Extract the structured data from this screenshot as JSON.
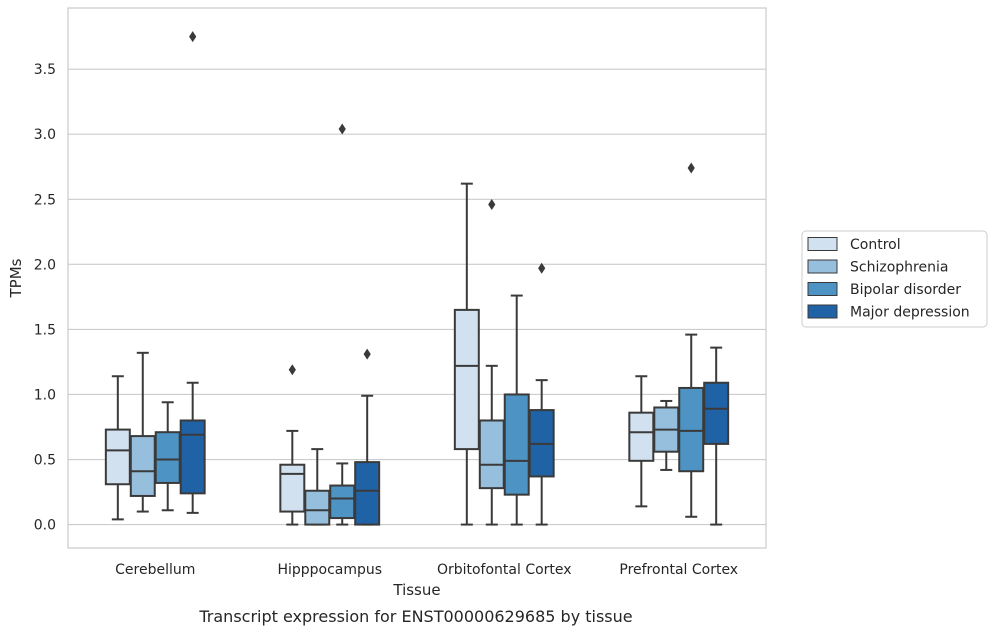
{
  "chart_data": {
    "type": "box",
    "caption": "Transcript expression for ENST00000629685 by tissue",
    "xlabel": "Tissue",
    "ylabel": "TPMs",
    "ylim": [
      -0.18,
      3.97
    ],
    "yticks": [
      0.0,
      0.5,
      1.0,
      1.5,
      2.0,
      2.5,
      3.0,
      3.5
    ],
    "ytick_labels": [
      "0.0",
      "0.5",
      "1.0",
      "1.5",
      "2.0",
      "2.5",
      "3.0",
      "3.5"
    ],
    "grid": "horizontal",
    "legend_position": "right-outside",
    "categories": [
      "Cerebellum",
      "Hipppocampus",
      "Orbitofontal Cortex",
      "Prefrontal Cortex"
    ],
    "series": [
      {
        "name": "Control",
        "color": "#d2e1f0",
        "boxes": [
          {
            "whislo": 0.04,
            "q1": 0.31,
            "med": 0.57,
            "q3": 0.73,
            "whishi": 1.14,
            "fliers": []
          },
          {
            "whislo": 0.0,
            "q1": 0.1,
            "med": 0.39,
            "q3": 0.46,
            "whishi": 0.72,
            "fliers": [
              1.19
            ]
          },
          {
            "whislo": 0.0,
            "q1": 0.58,
            "med": 1.22,
            "q3": 1.65,
            "whishi": 2.62,
            "fliers": []
          },
          {
            "whislo": 0.14,
            "q1": 0.49,
            "med": 0.71,
            "q3": 0.86,
            "whishi": 1.14,
            "fliers": []
          }
        ]
      },
      {
        "name": "Schizophrenia",
        "color": "#95bfdc",
        "boxes": [
          {
            "whislo": 0.1,
            "q1": 0.22,
            "med": 0.41,
            "q3": 0.68,
            "whishi": 1.32,
            "fliers": []
          },
          {
            "whislo": 0.0,
            "q1": 0.0,
            "med": 0.11,
            "q3": 0.26,
            "whishi": 0.58,
            "fliers": []
          },
          {
            "whislo": 0.0,
            "q1": 0.28,
            "med": 0.46,
            "q3": 0.8,
            "whishi": 1.22,
            "fliers": [
              2.46
            ]
          },
          {
            "whislo": 0.42,
            "q1": 0.56,
            "med": 0.73,
            "q3": 0.9,
            "whishi": 0.95,
            "fliers": []
          }
        ]
      },
      {
        "name": "Bipolar disorder",
        "color": "#4d94c4",
        "boxes": [
          {
            "whislo": 0.11,
            "q1": 0.32,
            "med": 0.5,
            "q3": 0.71,
            "whishi": 0.94,
            "fliers": []
          },
          {
            "whislo": 0.0,
            "q1": 0.05,
            "med": 0.2,
            "q3": 0.3,
            "whishi": 0.47,
            "fliers": [
              3.04
            ]
          },
          {
            "whislo": 0.0,
            "q1": 0.23,
            "med": 0.49,
            "q3": 1.0,
            "whishi": 1.76,
            "fliers": []
          },
          {
            "whislo": 0.06,
            "q1": 0.41,
            "med": 0.72,
            "q3": 1.05,
            "whishi": 1.46,
            "fliers": [
              2.74
            ]
          }
        ]
      },
      {
        "name": "Major depression",
        "color": "#2062a6",
        "boxes": [
          {
            "whislo": 0.09,
            "q1": 0.24,
            "med": 0.69,
            "q3": 0.8,
            "whishi": 1.09,
            "fliers": [
              3.75
            ]
          },
          {
            "whislo": 0.0,
            "q1": 0.0,
            "med": 0.26,
            "q3": 0.48,
            "whishi": 0.99,
            "fliers": [
              1.31
            ]
          },
          {
            "whislo": 0.0,
            "q1": 0.37,
            "med": 0.62,
            "q3": 0.88,
            "whishi": 1.11,
            "fliers": [
              1.97
            ]
          },
          {
            "whislo": 0.0,
            "q1": 0.62,
            "med": 0.89,
            "q3": 1.09,
            "whishi": 1.36,
            "fliers": []
          }
        ]
      }
    ]
  }
}
